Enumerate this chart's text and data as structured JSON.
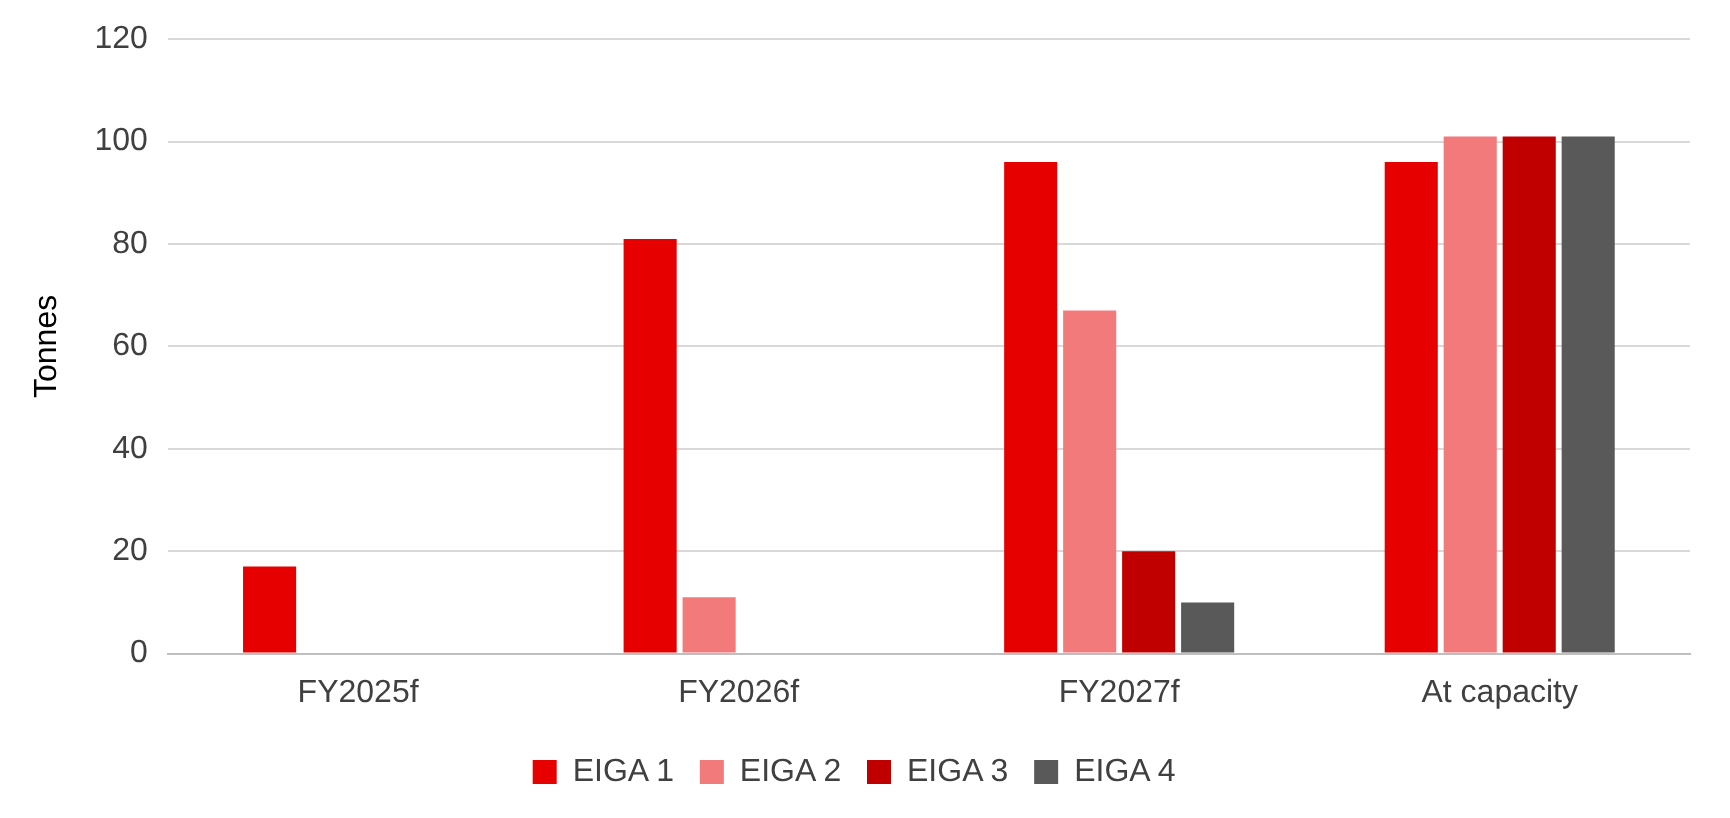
{
  "chart_data": {
    "type": "bar",
    "ylabel": "Tonnes",
    "categories": [
      "FY2025f",
      "FY2026f",
      "FY2027f",
      "At capacity"
    ],
    "series": [
      {
        "name": "EIGA 1",
        "color": "#e60000",
        "values": [
          17,
          81,
          96,
          96
        ]
      },
      {
        "name": "EIGA 2",
        "color": "#f27a7a",
        "values": [
          null,
          11,
          67,
          101
        ]
      },
      {
        "name": "EIGA 3",
        "color": "#c00000",
        "values": [
          null,
          null,
          20,
          101
        ]
      },
      {
        "name": "EIGA 4",
        "color": "#595959",
        "values": [
          null,
          null,
          10,
          101
        ]
      }
    ],
    "ylim": [
      0,
      120
    ],
    "yticks": [
      0,
      20,
      40,
      60,
      80,
      100,
      120
    ],
    "grid": "y",
    "legend": "bottom"
  }
}
